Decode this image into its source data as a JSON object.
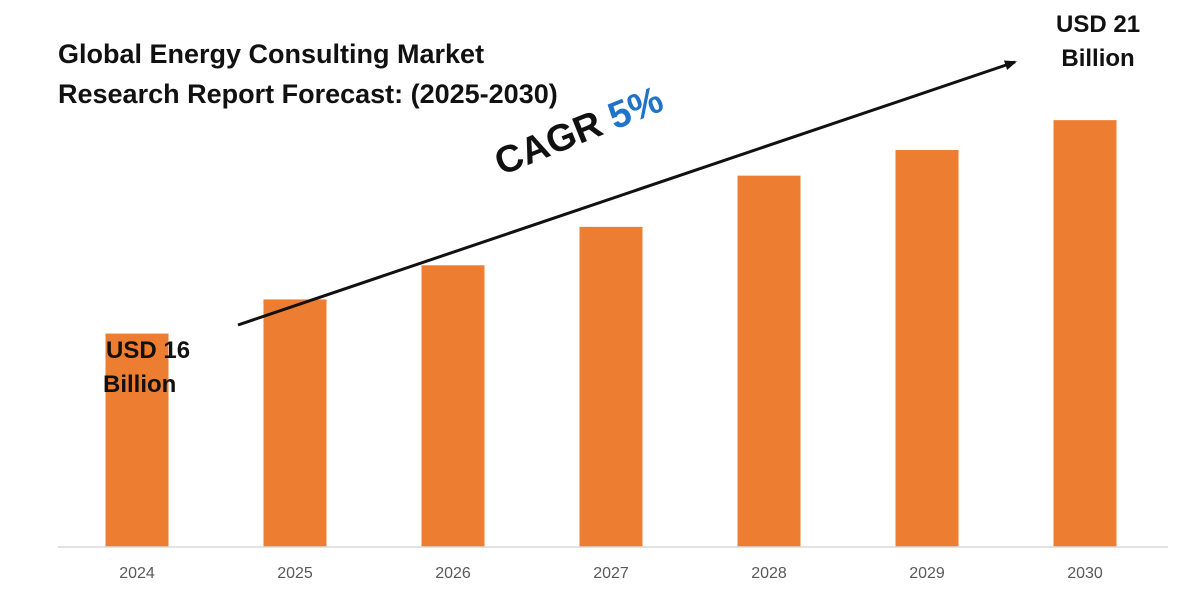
{
  "title_lines": [
    "Global Energy Consulting Market",
    "Research Report Forecast: (2025-2030)"
  ],
  "cagr": {
    "prefix": "CAGR",
    "value": "5%"
  },
  "annotations": {
    "start": [
      "USD 16",
      "Billion"
    ],
    "end": [
      "USD 21",
      "Billion"
    ]
  },
  "colors": {
    "bar": "#ed7d31",
    "cagr_value": "#1f73c9",
    "axis": "#d9d9d9",
    "text": "#111111"
  },
  "chart_data": {
    "type": "bar",
    "title": "Global Energy Consulting Market Research Report Forecast: (2025-2030)",
    "categories": [
      "2024",
      "2025",
      "2026",
      "2027",
      "2028",
      "2029",
      "2030"
    ],
    "values": [
      16,
      16.8,
      17.6,
      18.5,
      19.7,
      20.3,
      21
    ],
    "ylim": [
      11,
      21.8
    ],
    "xlabel": "",
    "ylabel": "",
    "grid": false,
    "legend": "none"
  }
}
